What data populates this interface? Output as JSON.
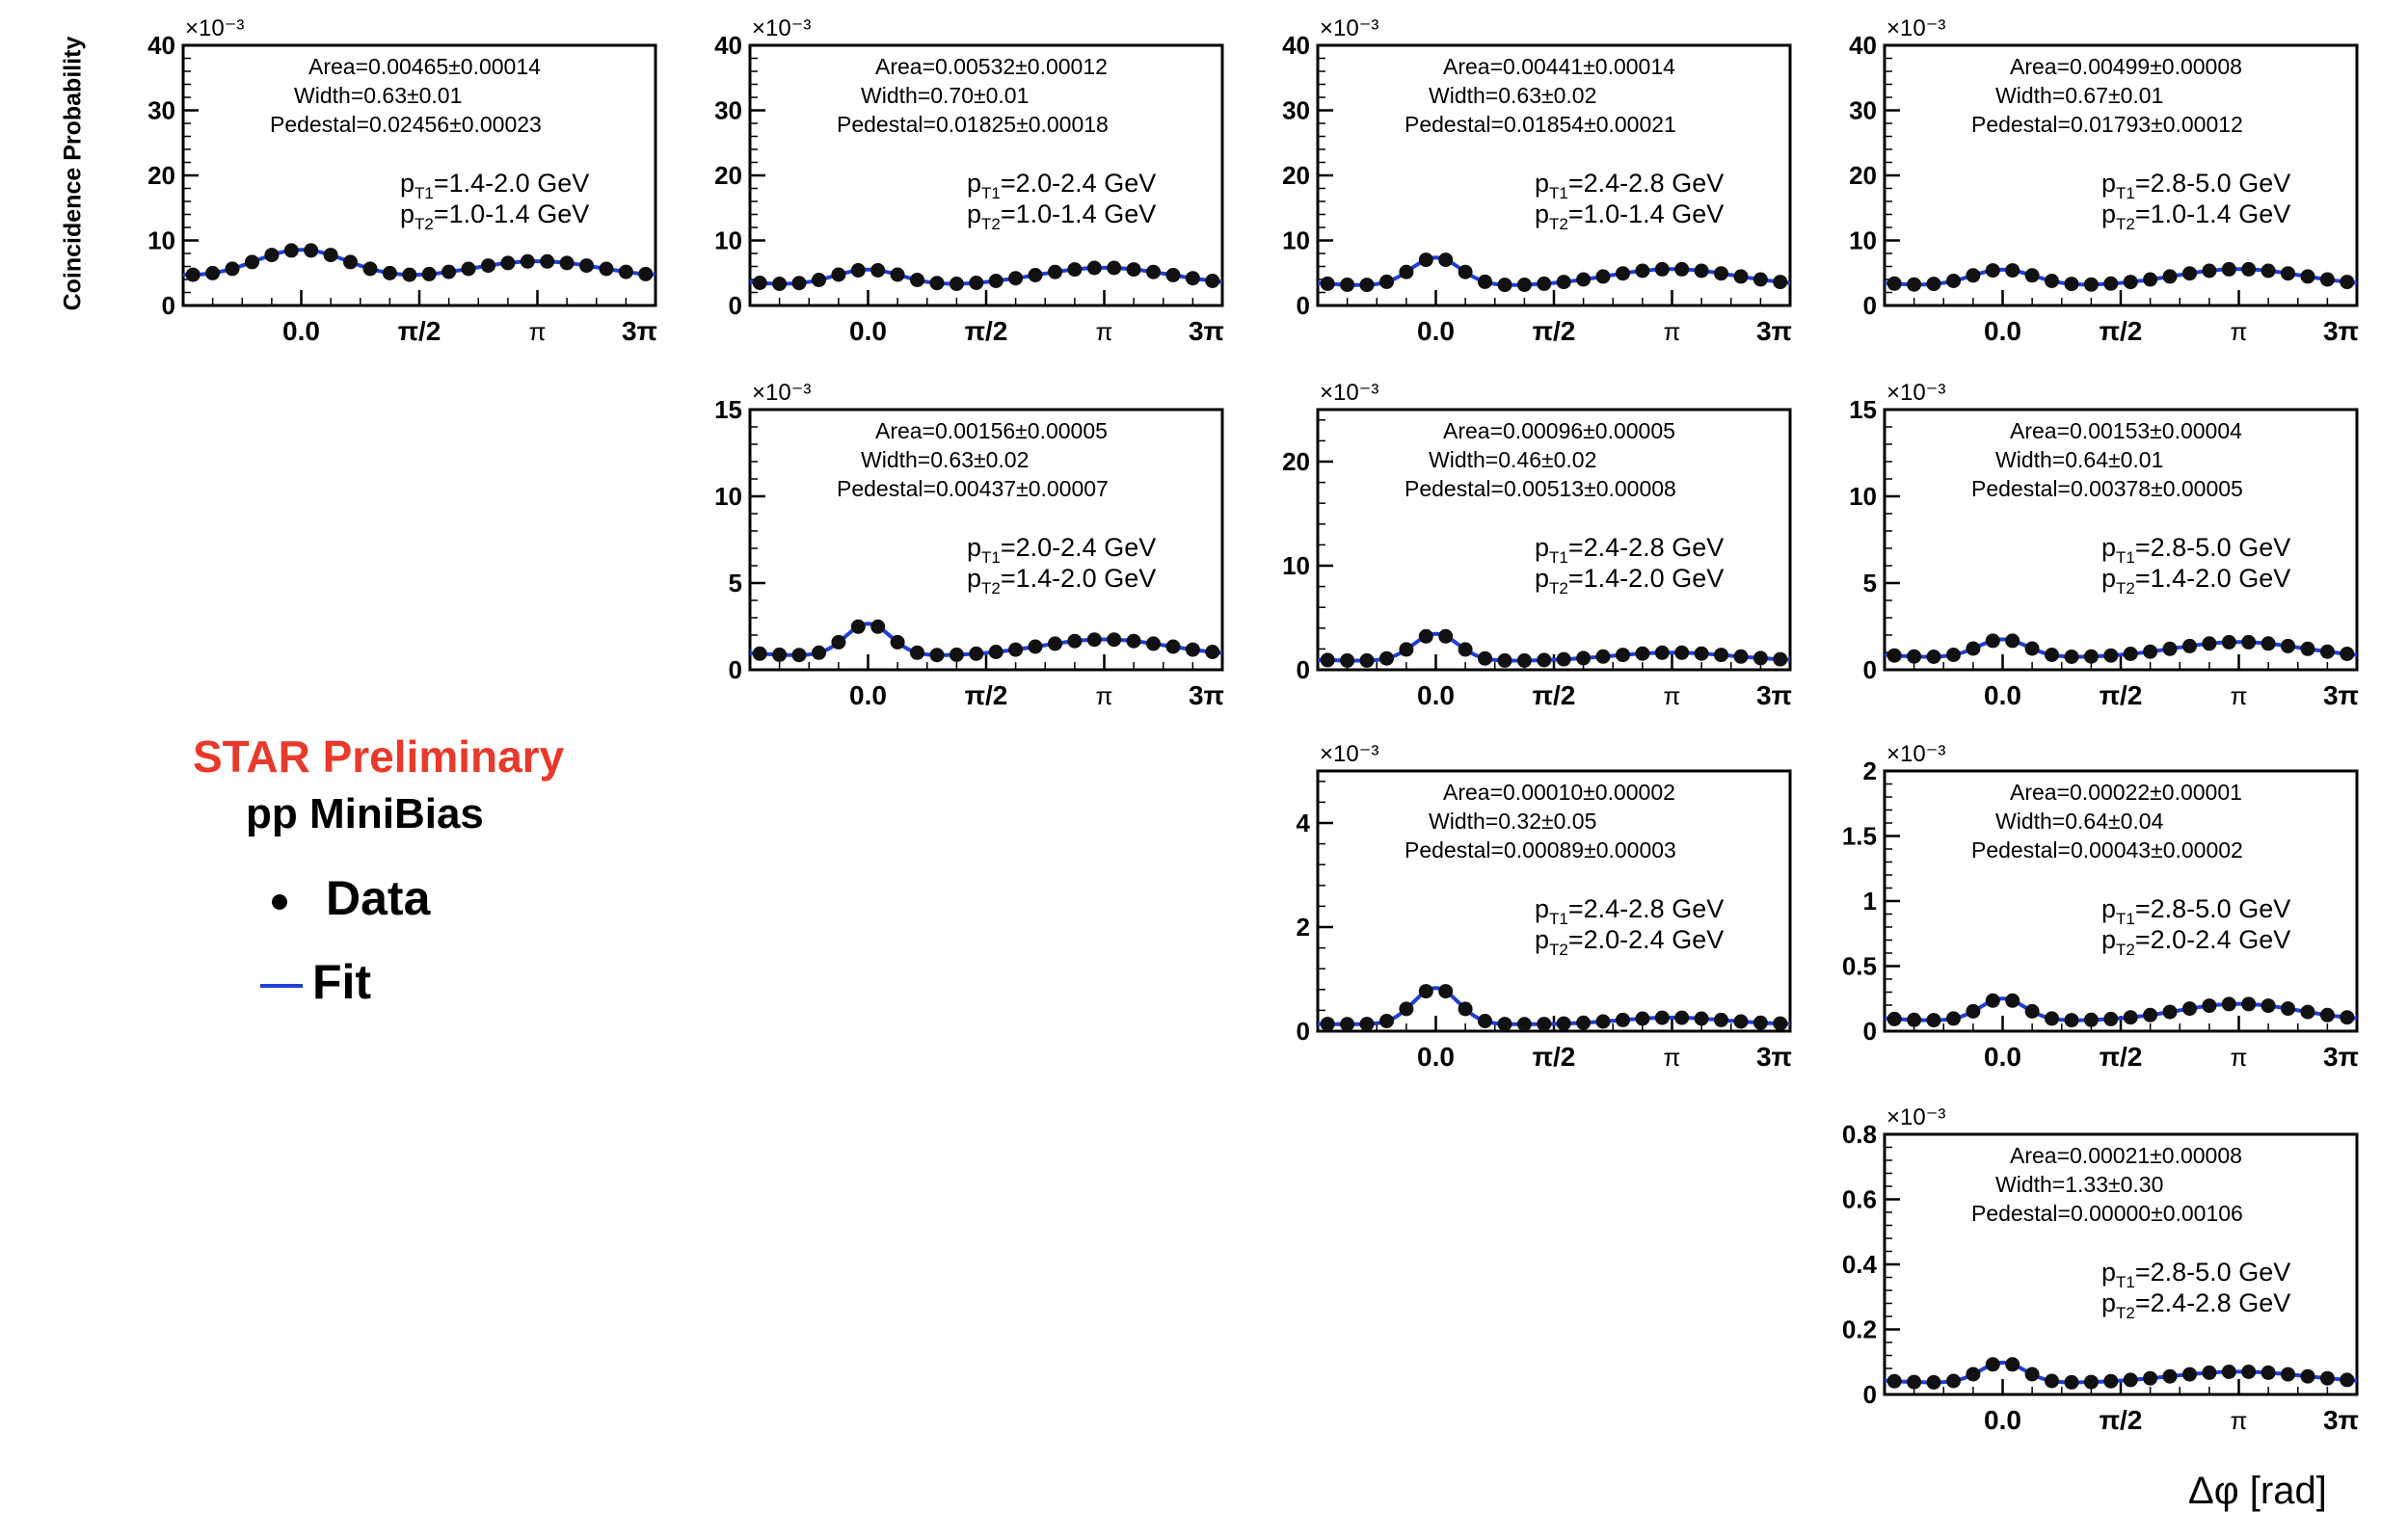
{
  "figure": {
    "ylabel": "Coincidence Probability",
    "xlabel": "Δφ [rad]",
    "legend": {
      "title": "STAR Preliminary",
      "subtitle": "pp MiniBias",
      "data_label": "Data",
      "fit_label": "Fit"
    },
    "colors": {
      "data": "#111111",
      "fit": "#1f3fd6",
      "title": "#e8392a"
    }
  },
  "chart_data": [
    {
      "type": "scatter",
      "panel": "pT1 1.4-2.0 / pT2 1.0-1.4",
      "scale_label": "×10⁻³",
      "ylim": [
        0,
        40
      ],
      "yticks": [
        "0",
        "10",
        "20",
        "30",
        "40"
      ],
      "xticks": [
        "0.0",
        "π/2",
        "π",
        "3π"
      ],
      "stats": [
        "Area=0.00465±0.00014",
        "Width=0.63±0.01",
        "Pedestal=0.02456±0.00023"
      ],
      "pt_label": [
        "p",
        "T1",
        "=1.4-2.0 GeV",
        "p",
        "T2",
        "=1.0-1.4 GeV"
      ],
      "series": [
        {
          "name": "Data",
          "fit": {
            "area": 4.65,
            "width": 0.63,
            "pedestal": 3.9,
            "away_amp": 2.9,
            "away_width": 0.9
          }
        }
      ]
    },
    {
      "type": "scatter",
      "panel": "pT1 2.0-2.4 / pT2 1.0-1.4",
      "scale_label": "×10⁻³",
      "ylim": [
        0,
        40
      ],
      "yticks": [
        "0",
        "10",
        "20",
        "30",
        "40"
      ],
      "xticks": [
        "0.0",
        "π/2",
        "π",
        "3π"
      ],
      "stats": [
        "Area=0.00532±0.00012",
        "Width=0.70±0.01",
        "Pedestal=0.01825±0.00018"
      ],
      "pt_label": [
        "p",
        "T1",
        "=2.0-2.4 GeV",
        "p",
        "T2",
        "=1.0-1.4 GeV"
      ],
      "series": [
        {
          "name": "Data",
          "fit": {
            "area": 2.5,
            "width": 0.45,
            "pedestal": 3.0,
            "away_amp": 2.8,
            "away_width": 0.9
          }
        }
      ]
    },
    {
      "type": "scatter",
      "panel": "pT1 2.4-2.8 / pT2 1.0-1.4",
      "scale_label": "×10⁻³",
      "ylim": [
        0,
        40
      ],
      "yticks": [
        "0",
        "10",
        "20",
        "30",
        "40"
      ],
      "xticks": [
        "0.0",
        "π/2",
        "π",
        "3π"
      ],
      "stats": [
        "Area=0.00441±0.00014",
        "Width=0.63±0.02",
        "Pedestal=0.01854±0.00021"
      ],
      "pt_label": [
        "p",
        "T1",
        "=2.4-2.8 GeV",
        "p",
        "T2",
        "=1.0-1.4 GeV"
      ],
      "series": [
        {
          "name": "Data",
          "fit": {
            "area": 4.35,
            "width": 0.33,
            "pedestal": 3.0,
            "away_amp": 2.6,
            "away_width": 0.85
          }
        }
      ]
    },
    {
      "type": "scatter",
      "panel": "pT1 2.8-5.0 / pT2 1.0-1.4",
      "scale_label": "×10⁻³",
      "ylim": [
        0,
        40
      ],
      "yticks": [
        "0",
        "10",
        "20",
        "30",
        "40"
      ],
      "xticks": [
        "0.0",
        "π/2",
        "π",
        "3π"
      ],
      "stats": [
        "Area=0.00499±0.00008",
        "Width=0.67±0.01",
        "Pedestal=0.01793±0.00012"
      ],
      "pt_label": [
        "p",
        "T1",
        "=2.8-5.0 GeV",
        "p",
        "T2",
        "=1.0-1.4 GeV"
      ],
      "series": [
        {
          "name": "Data",
          "fit": {
            "area": 2.5,
            "width": 0.42,
            "pedestal": 3.0,
            "away_amp": 2.6,
            "away_width": 0.85
          }
        }
      ]
    },
    {
      "type": "scatter",
      "panel": "pT1 2.0-2.4 / pT2 1.4-2.0",
      "scale_label": "×10⁻³",
      "ylim": [
        0,
        15
      ],
      "yticks": [
        "0",
        "5",
        "10",
        "15"
      ],
      "xticks": [
        "0.0",
        "π/2",
        "π",
        "3π"
      ],
      "stats": [
        "Area=0.00156±0.00005",
        "Width=0.63±0.02",
        "Pedestal=0.00437±0.00007"
      ],
      "pt_label": [
        "p",
        "T1",
        "=2.0-2.4 GeV",
        "p",
        "T2",
        "=1.4-2.0 GeV"
      ],
      "series": [
        {
          "name": "Data",
          "fit": {
            "area": 1.85,
            "width": 0.3,
            "pedestal": 0.8,
            "away_amp": 0.95,
            "away_width": 0.85
          }
        }
      ]
    },
    {
      "type": "scatter",
      "panel": "pT1 2.4-2.8 / pT2 1.4-2.0",
      "scale_label": "×10⁻³",
      "ylim": [
        0,
        25
      ],
      "yticks": [
        "0",
        "10",
        "20"
      ],
      "xticks": [
        "0.0",
        "π/2",
        "π",
        "3π"
      ],
      "stats": [
        "Area=0.00096±0.00005",
        "Width=0.46±0.02",
        "Pedestal=0.00513±0.00008"
      ],
      "pt_label": [
        "p",
        "T1",
        "=2.4-2.8 GeV",
        "p",
        "T2",
        "=1.4-2.0 GeV"
      ],
      "series": [
        {
          "name": "Data",
          "fit": {
            "area": 2.6,
            "width": 0.3,
            "pedestal": 0.85,
            "away_amp": 0.8,
            "away_width": 0.8
          }
        }
      ]
    },
    {
      "type": "scatter",
      "panel": "pT1 2.8-5.0 / pT2 1.4-2.0",
      "scale_label": "×10⁻³",
      "ylim": [
        0,
        15
      ],
      "yticks": [
        "0",
        "5",
        "10",
        "15"
      ],
      "xticks": [
        "0.0",
        "π/2",
        "π",
        "3π"
      ],
      "stats": [
        "Area=0.00153±0.00004",
        "Width=0.64±0.01",
        "Pedestal=0.00378±0.00005"
      ],
      "pt_label": [
        "p",
        "T1",
        "=2.8-5.0 GeV",
        "p",
        "T2",
        "=1.4-2.0 GeV"
      ],
      "series": [
        {
          "name": "Data",
          "fit": {
            "area": 1.05,
            "width": 0.33,
            "pedestal": 0.7,
            "away_amp": 0.9,
            "away_width": 0.85
          }
        }
      ]
    },
    {
      "type": "scatter",
      "panel": "pT1 2.4-2.8 / pT2 2.0-2.4",
      "scale_label": "×10⁻³",
      "ylim": [
        0,
        5
      ],
      "yticks": [
        "0",
        "2",
        "4"
      ],
      "xticks": [
        "0.0",
        "π/2",
        "π",
        "3π"
      ],
      "stats": [
        "Area=0.00010±0.00002",
        "Width=0.32±0.05",
        "Pedestal=0.00089±0.00003"
      ],
      "pt_label": [
        "p",
        "T1",
        "=2.4-2.8 GeV",
        "p",
        "T2",
        "=2.0-2.4 GeV"
      ],
      "series": [
        {
          "name": "Data",
          "fit": {
            "area": 0.7,
            "width": 0.3,
            "pedestal": 0.13,
            "away_amp": 0.13,
            "away_width": 0.7
          }
        }
      ]
    },
    {
      "type": "scatter",
      "panel": "pT1 2.8-5.0 / pT2 2.0-2.4",
      "scale_label": "×10⁻³",
      "ylim": [
        0,
        2
      ],
      "yticks": [
        "0",
        "0.5",
        "1",
        "1.5",
        "2"
      ],
      "xticks": [
        "0.0",
        "π/2",
        "π",
        "3π"
      ],
      "stats": [
        "Area=0.00022±0.00001",
        "Width=0.64±0.04",
        "Pedestal=0.00043±0.00002"
      ],
      "pt_label": [
        "p",
        "T1",
        "=2.8-5.0 GeV",
        "p",
        "T2",
        "=2.0-2.4 GeV"
      ],
      "series": [
        {
          "name": "Data",
          "fit": {
            "area": 0.17,
            "width": 0.3,
            "pedestal": 0.08,
            "away_amp": 0.13,
            "away_width": 0.8
          }
        }
      ]
    },
    {
      "type": "scatter",
      "panel": "pT1 2.8-5.0 / pT2 2.4-2.8",
      "scale_label": "×10⁻³",
      "ylim": [
        0,
        0.8
      ],
      "yticks": [
        "0",
        "0.2",
        "0.4",
        "0.6",
        "0.8"
      ],
      "xticks": [
        "0.0",
        "π/2",
        "π",
        "3π"
      ],
      "stats": [
        "Area=0.00021±0.00008",
        "Width=1.33±0.30",
        "Pedestal=0.00000±0.00106"
      ],
      "pt_label": [
        "p",
        "T1",
        "=2.8-5.0 GeV",
        "p",
        "T2",
        "=2.4-2.8 GeV"
      ],
      "series": [
        {
          "name": "Data",
          "fit": {
            "area": 0.063,
            "width": 0.3,
            "pedestal": 0.035,
            "away_amp": 0.035,
            "away_width": 0.9
          }
        }
      ]
    }
  ]
}
